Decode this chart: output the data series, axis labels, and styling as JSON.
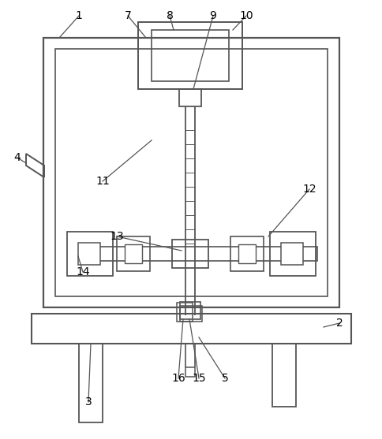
{
  "bg_color": "#ffffff",
  "line_color": "#555555",
  "line_width": 1.4,
  "figsize": [
    4.84,
    5.57
  ],
  "dpi": 100
}
